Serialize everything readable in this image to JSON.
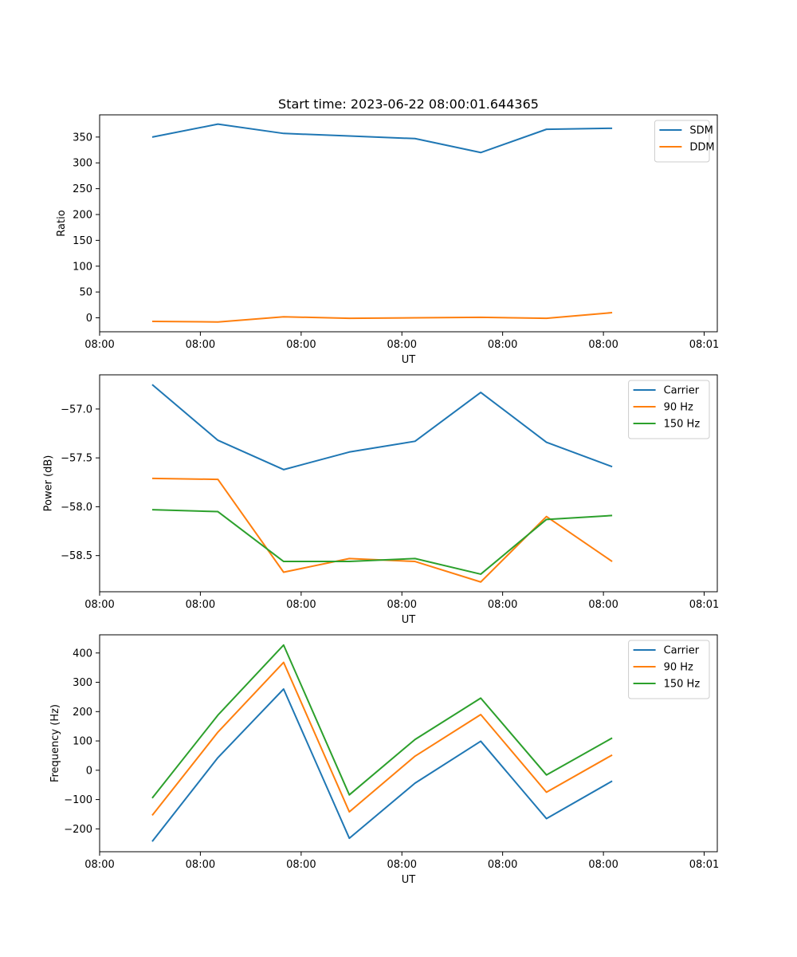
{
  "chart_data": [
    {
      "type": "line",
      "title": "Start time: 2023-06-22 08:00:01.644365",
      "xlabel": "UT",
      "ylabel": "Ratio",
      "x": [
        1,
        2,
        3,
        4,
        5,
        6,
        7,
        8
      ],
      "xlim": [
        0.2,
        9.6
      ],
      "xticks": [
        0.2,
        1.733,
        3.267,
        4.8,
        6.333,
        7.867,
        9.4
      ],
      "xtick_labels": [
        "08:00",
        "08:00",
        "08:00",
        "08:00",
        "08:00",
        "08:00",
        "08:01"
      ],
      "ylim": [
        -27,
        393
      ],
      "yticks": [
        0,
        50,
        100,
        150,
        200,
        250,
        300,
        350
      ],
      "ytick_labels": [
        "0",
        "50",
        "100",
        "150",
        "200",
        "250",
        "300",
        "350"
      ],
      "legend_position": "top-right",
      "grid": false,
      "series": [
        {
          "name": "SDM",
          "color": "#1f77b4",
          "values": [
            350,
            375,
            357,
            352,
            347,
            320,
            365,
            367
          ]
        },
        {
          "name": "DDM",
          "color": "#ff7f0e",
          "values": [
            -7,
            -8,
            2,
            -1,
            0,
            1,
            -1,
            10
          ]
        }
      ]
    },
    {
      "type": "line",
      "title": "",
      "xlabel": "UT",
      "ylabel": "Power (dB)",
      "x": [
        1,
        2,
        3,
        4,
        5,
        6,
        7,
        8
      ],
      "xlim": [
        0.2,
        9.6
      ],
      "xticks": [
        0.2,
        1.733,
        3.267,
        4.8,
        6.333,
        7.867,
        9.4
      ],
      "xtick_labels": [
        "08:00",
        "08:00",
        "08:00",
        "08:00",
        "08:00",
        "08:00",
        "08:01"
      ],
      "ylim": [
        -58.87,
        -56.65
      ],
      "yticks": [
        -58.5,
        -58.0,
        -57.5,
        -57.0
      ],
      "ytick_labels": [
        "−58.5",
        "−58.0",
        "−57.5",
        "−57.0"
      ],
      "legend_position": "top-right",
      "grid": false,
      "series": [
        {
          "name": "Carrier",
          "color": "#1f77b4",
          "values": [
            -56.75,
            -57.32,
            -57.62,
            -57.44,
            -57.33,
            -56.83,
            -57.34,
            -57.59
          ]
        },
        {
          "name": "90 Hz",
          "color": "#ff7f0e",
          "values": [
            -57.71,
            -57.72,
            -58.67,
            -58.53,
            -58.56,
            -58.77,
            -58.1,
            -58.56
          ]
        },
        {
          "name": "150 Hz",
          "color": "#2ca02c",
          "values": [
            -58.03,
            -58.05,
            -58.56,
            -58.56,
            -58.53,
            -58.69,
            -58.13,
            -58.09
          ]
        }
      ]
    },
    {
      "type": "line",
      "title": "",
      "xlabel": "UT",
      "ylabel": "Frequency (Hz)",
      "x": [
        1,
        2,
        3,
        4,
        5,
        6,
        7,
        8
      ],
      "xlim": [
        0.2,
        9.6
      ],
      "xticks": [
        0.2,
        1.733,
        3.267,
        4.8,
        6.333,
        7.867,
        9.4
      ],
      "xtick_labels": [
        "08:00",
        "08:00",
        "08:00",
        "08:00",
        "08:00",
        "08:00",
        "08:01"
      ],
      "ylim": [
        -278,
        462
      ],
      "yticks": [
        -200,
        -100,
        0,
        100,
        200,
        300,
        400
      ],
      "ytick_labels": [
        "−200",
        "−100",
        "0",
        "100",
        "200",
        "300",
        "400"
      ],
      "legend_position": "top-right",
      "grid": false,
      "series": [
        {
          "name": "Carrier",
          "color": "#1f77b4",
          "values": [
            -243,
            43,
            277,
            -232,
            -44,
            99,
            -165,
            -37
          ]
        },
        {
          "name": "90 Hz",
          "color": "#ff7f0e",
          "values": [
            -154,
            130,
            368,
            -142,
            48,
            190,
            -75,
            52
          ]
        },
        {
          "name": "150 Hz",
          "color": "#2ca02c",
          "values": [
            -95,
            188,
            427,
            -84,
            105,
            246,
            -16,
            110
          ]
        }
      ]
    }
  ]
}
